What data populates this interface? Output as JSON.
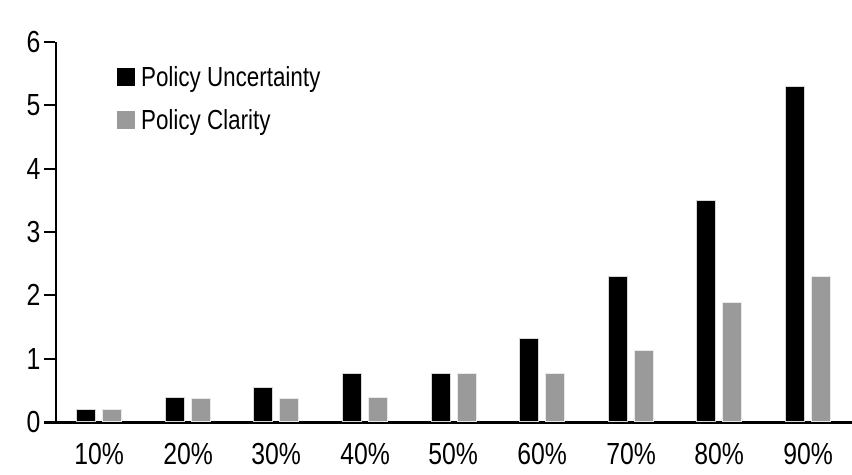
{
  "chart_data": {
    "type": "bar",
    "title": "",
    "xlabel": "",
    "ylabel": "",
    "categories": [
      "10%",
      "20%",
      "30%",
      "40%",
      "50%",
      "60%",
      "70%",
      "80%",
      "90%"
    ],
    "series": [
      {
        "name": "Policy Uncertainty",
        "color": "#000000",
        "values": [
          0.2,
          0.4,
          0.55,
          0.77,
          0.78,
          1.33,
          2.3,
          3.5,
          5.3
        ]
      },
      {
        "name": "Policy Clarity",
        "color": "#9a9a9a",
        "values": [
          0.2,
          0.38,
          0.38,
          0.4,
          0.77,
          0.77,
          1.13,
          1.9,
          2.3
        ]
      }
    ],
    "ylim": [
      0,
      6
    ],
    "yticks": [
      0,
      1,
      2,
      3,
      4,
      5,
      6
    ],
    "grid": false,
    "legend_position": "upper-left",
    "background_color": "#ffffff",
    "axis_color": "#000000"
  }
}
